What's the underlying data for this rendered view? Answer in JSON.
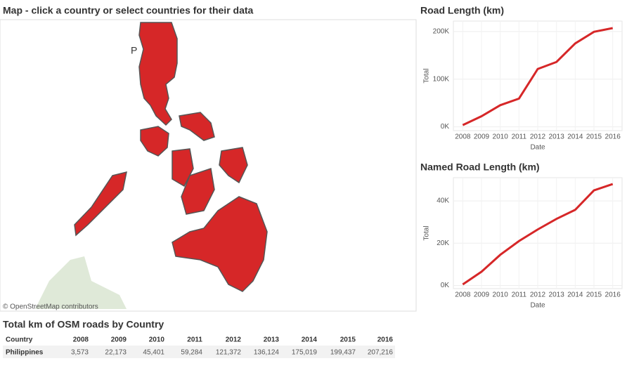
{
  "map": {
    "title": "Map - click a country or select countries for their data",
    "label": "P",
    "attribution": "© OpenStreetMap contributors"
  },
  "chart_data": [
    {
      "type": "line",
      "title": "Road Length (km)",
      "xlabel": "Date",
      "ylabel": "Total",
      "categories": [
        "2008",
        "2009",
        "2010",
        "2011",
        "2012",
        "2013",
        "2014",
        "2015",
        "2016"
      ],
      "series": [
        {
          "name": "Total",
          "color": "#d62728",
          "values": [
            3573,
            22173,
            45401,
            59284,
            121372,
            136124,
            175019,
            199437,
            207216
          ]
        }
      ],
      "ylim": [
        -8000,
        222000
      ],
      "yticks": [
        {
          "value": 0,
          "label": "0K"
        },
        {
          "value": 100000,
          "label": "100K"
        },
        {
          "value": 200000,
          "label": "200K"
        }
      ],
      "grid": true
    },
    {
      "type": "line",
      "title": "Named Road Length (km)",
      "xlabel": "Date",
      "ylabel": "Total",
      "categories": [
        "2008",
        "2009",
        "2010",
        "2011",
        "2012",
        "2013",
        "2014",
        "2015",
        "2016"
      ],
      "series": [
        {
          "name": "Total",
          "color": "#d62728",
          "values": [
            500,
            6500,
            14500,
            21000,
            26500,
            31500,
            35800,
            45000,
            48000
          ]
        }
      ],
      "ylim": [
        -1500,
        51000
      ],
      "yticks": [
        {
          "value": 0,
          "label": "0K"
        },
        {
          "value": 20000,
          "label": "20K"
        },
        {
          "value": 40000,
          "label": "40K"
        }
      ],
      "grid": true
    }
  ],
  "table": {
    "title": "Total km of OSM roads by Country",
    "columns": [
      "Country",
      "2008",
      "2009",
      "2010",
      "2011",
      "2012",
      "2013",
      "2014",
      "2015",
      "2016"
    ],
    "rows": [
      [
        "Philippines",
        "3,573",
        "22,173",
        "45,401",
        "59,284",
        "121,372",
        "136,124",
        "175,019",
        "199,437",
        "207,216"
      ]
    ]
  }
}
